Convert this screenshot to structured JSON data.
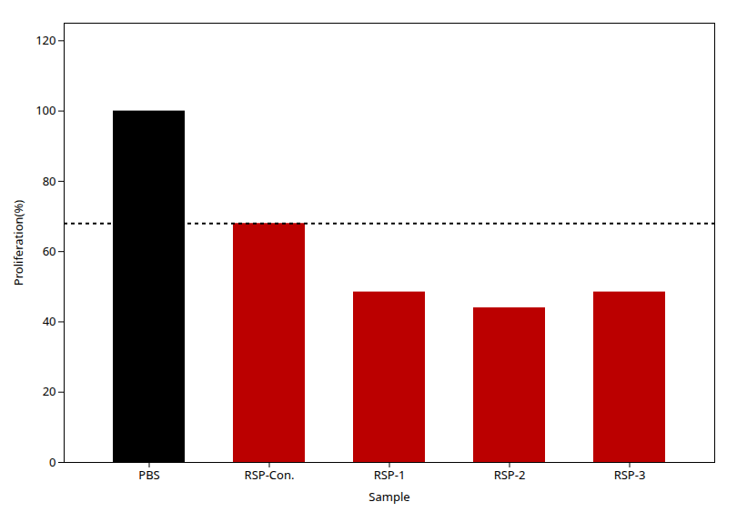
{
  "chart_data": {
    "type": "bar",
    "categories": [
      "PBS",
      "RSP-Con.",
      "RSP-1",
      "RSP-2",
      "RSP-3"
    ],
    "values": [
      100,
      68,
      48.5,
      44,
      48.5
    ],
    "colors": [
      "#000000",
      "#bb0000",
      "#bb0000",
      "#bb0000",
      "#bb0000"
    ],
    "reference_line": 68,
    "xlabel": "Sample",
    "ylabel": "Proliferation(%)",
    "ylim": [
      0,
      125
    ],
    "yticks": [
      0,
      20,
      40,
      60,
      80,
      100,
      120
    ],
    "grid": false
  }
}
